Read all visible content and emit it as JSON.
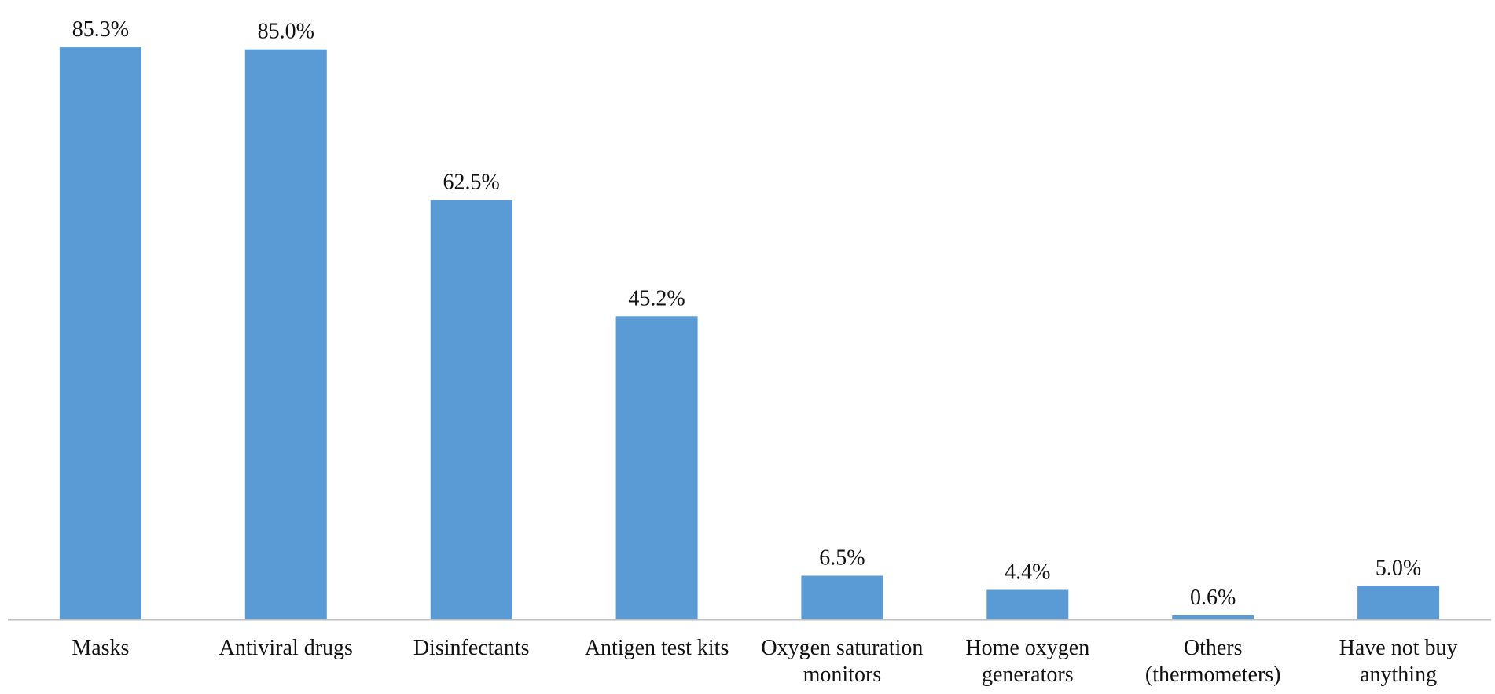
{
  "chart_data": {
    "type": "bar",
    "categories": [
      "Masks",
      "Antiviral drugs",
      "Disinfectants",
      "Antigen test kits",
      "Oxygen saturation monitors",
      "Home oxygen generators",
      "Others (thermometers)",
      "Have not buy anything"
    ],
    "category_lines": [
      [
        "Masks"
      ],
      [
        "Antiviral drugs"
      ],
      [
        "Disinfectants"
      ],
      [
        "Antigen test kits"
      ],
      [
        "Oxygen saturation",
        "monitors"
      ],
      [
        "Home oxygen",
        "generators"
      ],
      [
        "Others",
        "(thermometers)"
      ],
      [
        "Have not buy",
        "anything"
      ]
    ],
    "values": [
      85.3,
      85.0,
      62.5,
      45.2,
      6.5,
      4.4,
      0.6,
      5.0
    ],
    "data_labels": [
      "85.3%",
      "85.0%",
      "62.5%",
      "45.2%",
      "6.5%",
      "4.4%",
      "0.6%",
      "5.0%"
    ],
    "unit": "%",
    "title": "",
    "xlabel": "",
    "ylabel": "",
    "ylim": [
      0,
      90
    ],
    "grid": false,
    "legend": "none",
    "colors": {
      "bar": "#5B9BD5",
      "axis": "#BFBFBF",
      "text": "#111111"
    }
  }
}
